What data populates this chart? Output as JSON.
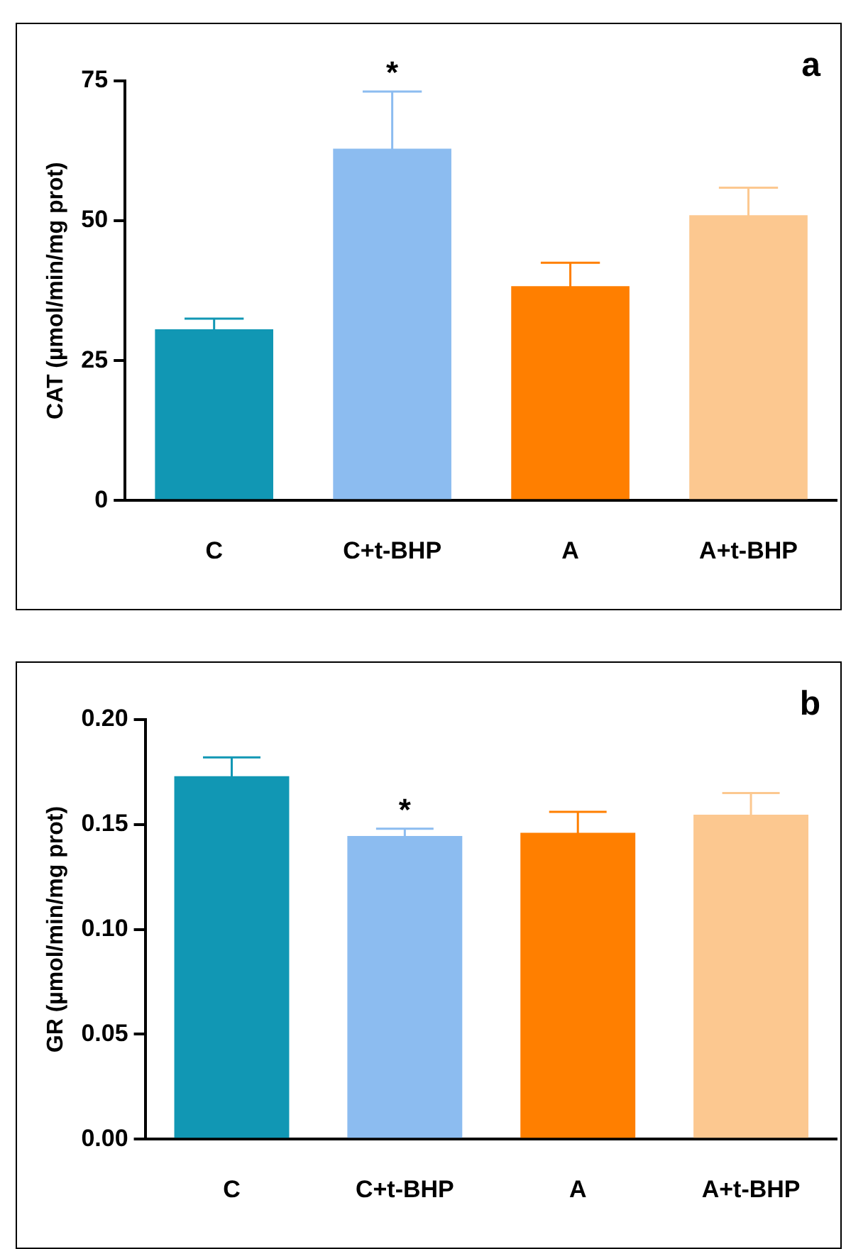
{
  "chart_data": [
    {
      "type": "bar",
      "ylabel": "CAT (µmol/min/mg prot)",
      "categories": [
        "C",
        "C+t-BHP",
        "A",
        "A+t-BHP"
      ],
      "values": [
        30.6,
        62.9,
        38.3,
        51.0
      ],
      "colors": [
        "#1197b4",
        "#8cbcf0",
        "#ff7f00",
        "#fcc890"
      ],
      "errors": [
        1.9,
        10.2,
        4.2,
        4.9
      ],
      "ylim": [
        0,
        75
      ],
      "yticks": [
        0,
        25,
        50,
        75
      ],
      "grid": false,
      "legend": false,
      "annotations": [
        "a",
        {
          "text": "*",
          "x": "C+t-BHP",
          "y": 73.1
        }
      ]
    },
    {
      "type": "bar",
      "ylabel": "GR (µmol/min/mg prot)",
      "categories": [
        "C",
        "C+t-BHP",
        "A",
        "A+t-BHP"
      ],
      "values": [
        0.173,
        0.1445,
        0.146,
        0.1547
      ],
      "colors": [
        "#1197b4",
        "#8cbcf0",
        "#ff7f00",
        "#fcc890"
      ],
      "errors": [
        0.009,
        0.0035,
        0.01,
        0.0103
      ],
      "ylim": [
        0,
        0.2
      ],
      "yticks": [
        {
          "value": 0,
          "label": "0.00"
        },
        {
          "value": 0.05,
          "label": "0.05"
        },
        {
          "value": 0.1,
          "label": "0.10"
        },
        {
          "value": 0.15,
          "label": "0.15"
        },
        {
          "value": 0.2,
          "label": "0.20"
        }
      ],
      "grid": false,
      "legend": false,
      "annotations": [
        "b",
        {
          "text": "*",
          "x": "C+t-BHP",
          "y": 0.148
        }
      ]
    }
  ]
}
